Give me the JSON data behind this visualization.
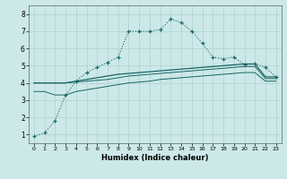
{
  "xlabel": "Humidex (Indice chaleur)",
  "ylabel": "",
  "bg_color": "#cce8e8",
  "grid_color": "#b0d0d0",
  "line_color": "#1a6666",
  "xlim": [
    -0.5,
    23.5
  ],
  "ylim": [
    0.5,
    8.5
  ],
  "xticks": [
    0,
    1,
    2,
    3,
    4,
    5,
    6,
    7,
    8,
    9,
    10,
    11,
    12,
    13,
    14,
    15,
    16,
    17,
    18,
    19,
    20,
    21,
    22,
    23
  ],
  "yticks": [
    1,
    2,
    3,
    4,
    5,
    6,
    7,
    8
  ],
  "series1_x": [
    0,
    1,
    2,
    3,
    4,
    5,
    6,
    7,
    8,
    9,
    10,
    11,
    12,
    13,
    14,
    15,
    16,
    17,
    18,
    19,
    20,
    21,
    22,
    23
  ],
  "series1_y": [
    0.9,
    1.1,
    1.8,
    3.3,
    4.1,
    4.6,
    4.9,
    5.2,
    5.5,
    7.0,
    7.0,
    7.0,
    7.1,
    7.7,
    7.5,
    7.0,
    6.3,
    5.5,
    5.4,
    5.5,
    5.05,
    5.1,
    4.9,
    4.35
  ],
  "series2_x": [
    0,
    1,
    2,
    3,
    4,
    5,
    6,
    7,
    8,
    9,
    10,
    11,
    12,
    13,
    14,
    15,
    16,
    17,
    18,
    19,
    20,
    21,
    22,
    23
  ],
  "series2_y": [
    4.0,
    4.0,
    4.0,
    4.0,
    4.1,
    4.2,
    4.3,
    4.4,
    4.5,
    4.55,
    4.6,
    4.65,
    4.7,
    4.75,
    4.8,
    4.85,
    4.9,
    4.95,
    5.0,
    5.05,
    5.1,
    5.1,
    4.35,
    4.35
  ],
  "series3_x": [
    0,
    1,
    2,
    3,
    4,
    5,
    6,
    7,
    8,
    9,
    10,
    11,
    12,
    13,
    14,
    15,
    16,
    17,
    18,
    19,
    20,
    21,
    22,
    23
  ],
  "series3_y": [
    4.0,
    4.0,
    4.0,
    4.0,
    4.05,
    4.1,
    4.15,
    4.2,
    4.3,
    4.4,
    4.45,
    4.5,
    4.55,
    4.6,
    4.65,
    4.7,
    4.75,
    4.8,
    4.85,
    4.9,
    4.95,
    4.95,
    4.25,
    4.25
  ],
  "series4_x": [
    0,
    1,
    2,
    3,
    4,
    5,
    6,
    7,
    8,
    9,
    10,
    11,
    12,
    13,
    14,
    15,
    16,
    17,
    18,
    19,
    20,
    21,
    22,
    23
  ],
  "series4_y": [
    3.5,
    3.5,
    3.3,
    3.3,
    3.5,
    3.6,
    3.7,
    3.8,
    3.9,
    4.0,
    4.05,
    4.1,
    4.2,
    4.25,
    4.3,
    4.35,
    4.4,
    4.45,
    4.5,
    4.55,
    4.6,
    4.6,
    4.1,
    4.1
  ]
}
